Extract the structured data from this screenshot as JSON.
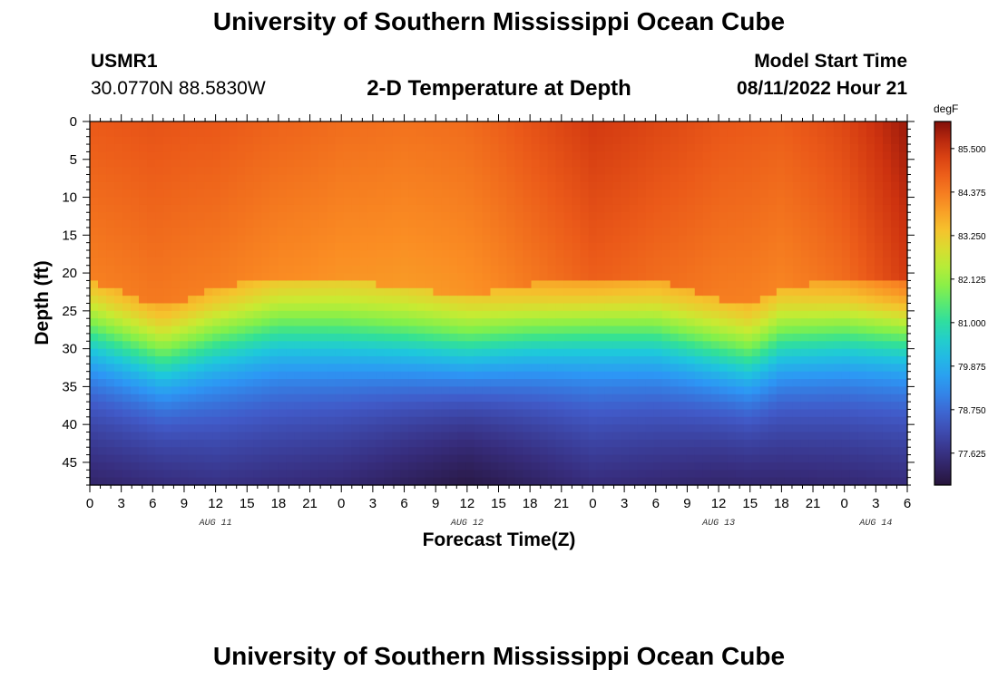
{
  "header": {
    "title": "University of Southern Mississippi Ocean Cube",
    "station_id": "USMR1",
    "coordinates": "30.0770N  88.5830W",
    "model_label": "Model Start Time",
    "model_time": "08/11/2022 Hour 21",
    "footer_title": "University of Southern Mississippi Ocean Cube"
  },
  "chart_data": {
    "type": "heatmap",
    "title": "2-D Temperature at Depth",
    "xlabel": "Forecast Time(Z)",
    "ylabel": "Depth (ft)",
    "x_range_hours": [
      0,
      78
    ],
    "y_range_ft": [
      0,
      48
    ],
    "x_tick_hours": [
      0,
      3,
      6,
      9,
      12,
      15,
      18,
      21,
      24,
      27,
      30,
      33,
      36,
      39,
      42,
      45,
      48,
      51,
      54,
      57,
      60,
      63,
      66,
      69,
      72,
      75,
      78
    ],
    "x_tick_labels": [
      "0",
      "3",
      "6",
      "9",
      "12",
      "15",
      "18",
      "21",
      "0",
      "3",
      "6",
      "9",
      "12",
      "15",
      "18",
      "21",
      "0",
      "3",
      "6",
      "9",
      "12",
      "15",
      "18",
      "21",
      "0",
      "3",
      "6"
    ],
    "day_labels": [
      {
        "text": "AUG 11",
        "hour": 12
      },
      {
        "text": "AUG 12",
        "hour": 36
      },
      {
        "text": "AUG 13",
        "hour": 60
      },
      {
        "text": "AUG 14",
        "hour": 75
      }
    ],
    "y_ticks": [
      0,
      5,
      10,
      15,
      20,
      25,
      30,
      35,
      40,
      45
    ],
    "colorbar": {
      "unit": "degF",
      "min": 76.8,
      "max": 86.2,
      "labels": [
        "85.500",
        "84.375",
        "83.250",
        "82.125",
        "81.000",
        "79.875",
        "78.750",
        "77.625"
      ],
      "label_values": [
        85.5,
        84.375,
        83.25,
        82.125,
        81.0,
        79.875,
        78.75,
        77.625
      ]
    },
    "thermocline_depth_ft": [
      {
        "hour": 0,
        "depth": 27
      },
      {
        "hour": 3,
        "depth": 28.5
      },
      {
        "hour": 7,
        "depth": 30.5
      },
      {
        "hour": 12,
        "depth": 28
      },
      {
        "hour": 18,
        "depth": 26.5
      },
      {
        "hour": 24,
        "depth": 27
      },
      {
        "hour": 30,
        "depth": 28
      },
      {
        "hour": 36,
        "depth": 29
      },
      {
        "hour": 42,
        "depth": 27.5
      },
      {
        "hour": 48,
        "depth": 26.5
      },
      {
        "hour": 54,
        "depth": 27
      },
      {
        "hour": 60,
        "depth": 29.5
      },
      {
        "hour": 63,
        "depth": 30.5
      },
      {
        "hour": 66,
        "depth": 28
      },
      {
        "hour": 72,
        "depth": 27
      },
      {
        "hour": 78,
        "depth": 27
      }
    ],
    "surface_temp_degF": [
      {
        "hour": 0,
        "temp": 84.9
      },
      {
        "hour": 6,
        "temp": 85.1
      },
      {
        "hour": 12,
        "temp": 85.0
      },
      {
        "hour": 18,
        "temp": 84.7
      },
      {
        "hour": 24,
        "temp": 84.5
      },
      {
        "hour": 30,
        "temp": 84.5
      },
      {
        "hour": 36,
        "temp": 84.7
      },
      {
        "hour": 42,
        "temp": 85.1
      },
      {
        "hour": 48,
        "temp": 85.4
      },
      {
        "hour": 54,
        "temp": 85.1
      },
      {
        "hour": 60,
        "temp": 84.9
      },
      {
        "hour": 66,
        "temp": 84.9
      },
      {
        "hour": 72,
        "temp": 85.3
      },
      {
        "hour": 78,
        "temp": 86.0
      }
    ],
    "bottom_temp_degF": [
      {
        "hour": 0,
        "temp": 77.3
      },
      {
        "hour": 12,
        "temp": 77.6
      },
      {
        "hour": 24,
        "temp": 77.4
      },
      {
        "hour": 36,
        "temp": 76.9
      },
      {
        "hour": 48,
        "temp": 77.5
      },
      {
        "hour": 60,
        "temp": 77.3
      },
      {
        "hour": 72,
        "temp": 77.4
      },
      {
        "hour": 78,
        "temp": 77.5
      }
    ]
  }
}
